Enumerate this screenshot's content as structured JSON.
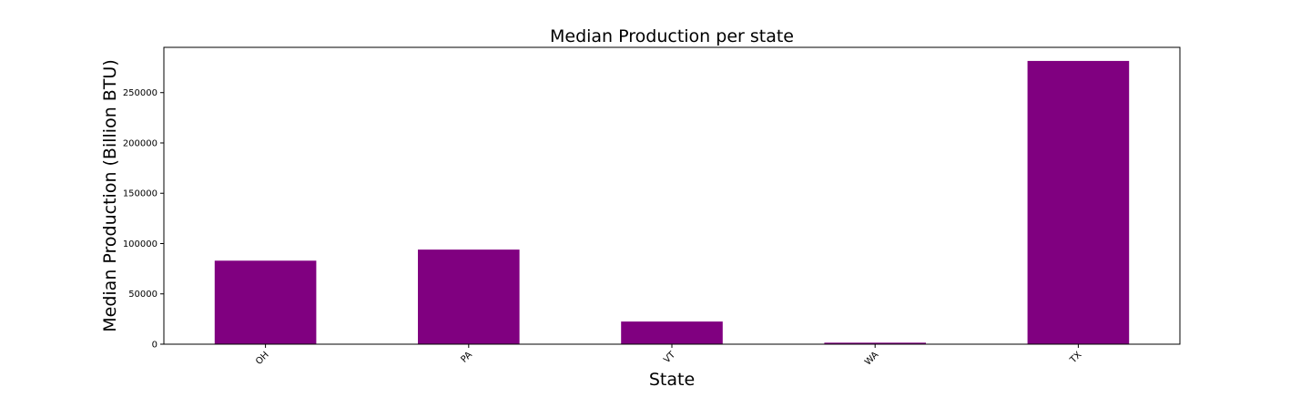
{
  "chart_data": {
    "type": "bar",
    "title": "Median Production per state",
    "xlabel": "State",
    "ylabel": "Median Production (Billion BTU)",
    "categories": [
      "OH",
      "PA",
      "VT",
      "WA",
      "TX"
    ],
    "values": [
      83000,
      94000,
      22500,
      1500,
      281500
    ],
    "ylim": [
      0,
      295000
    ],
    "yticks": [
      0,
      50000,
      100000,
      150000,
      200000,
      250000
    ],
    "ytick_labels": [
      "0",
      "50000",
      "100000",
      "150000",
      "200000",
      "250000"
    ],
    "bar_color": "#800080",
    "grid": false,
    "legend": "none"
  }
}
